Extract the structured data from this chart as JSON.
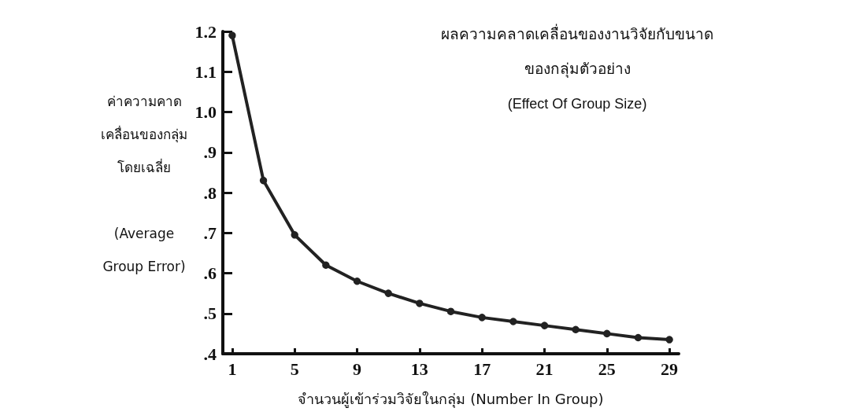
{
  "chart_data": {
    "type": "line",
    "title": "ผลความคลาดเคลื่อนของงานวิจัยกับขนาด\nของกลุ่มตัวอย่าง",
    "subtitle": "(Effect Of Group Size)",
    "xlabel": "จำนวนผู้เข้าร่วมวิจัยในกลุ่ม (Number In Group)",
    "ylabel": "ค่าความคาด\nเคลื่อนของกลุ่ม\nโดยเฉลี่ย\n\n(Average\nGroup Error)",
    "x": [
      1,
      3,
      5,
      7,
      9,
      11,
      13,
      15,
      17,
      19,
      21,
      23,
      25,
      27,
      29
    ],
    "series": [
      {
        "color": "#222222",
        "values": [
          1.19,
          0.83,
          0.695,
          0.62,
          0.58,
          0.55,
          0.525,
          0.505,
          0.49,
          0.48,
          0.47,
          0.46,
          0.45,
          0.44,
          0.435
        ]
      }
    ],
    "xlim": [
      0.4,
      29.6
    ],
    "xticks": [
      1,
      5,
      9,
      13,
      17,
      21,
      25,
      29
    ],
    "ylim": [
      0.4,
      1.2
    ],
    "yticks": [
      {
        "value": 0.4,
        "label": ".4"
      },
      {
        "value": 0.5,
        "label": ".5"
      },
      {
        "value": 0.6,
        "label": ".6"
      },
      {
        "value": 0.7,
        "label": ".7"
      },
      {
        "value": 0.8,
        "label": ".8"
      },
      {
        "value": 0.9,
        "label": ".9"
      },
      {
        "value": 1.0,
        "label": "1.0"
      },
      {
        "value": 1.1,
        "label": "1.1"
      },
      {
        "value": 1.2,
        "label": "1.2"
      }
    ],
    "grid": false,
    "marker": "circle",
    "line_style": "solid"
  }
}
